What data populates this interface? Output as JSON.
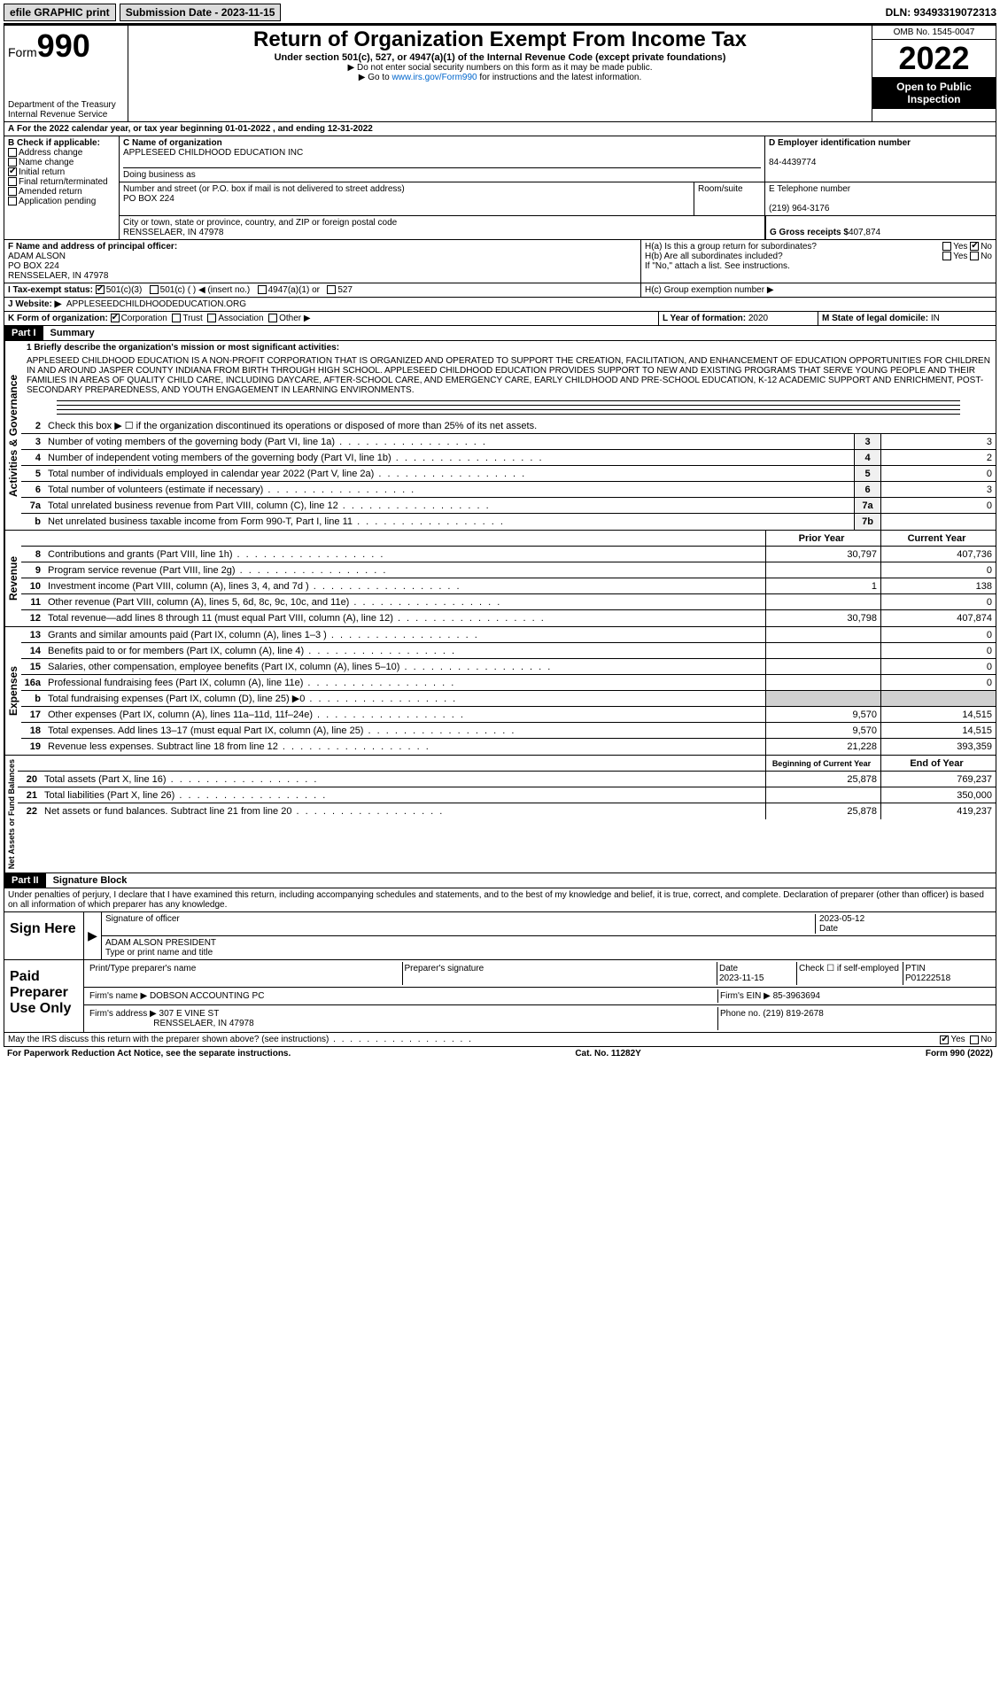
{
  "topbar": {
    "efile": "efile GRAPHIC print",
    "subdate_lbl": "Submission Date - 2023-11-15",
    "dln": "DLN: 93493319072313"
  },
  "header": {
    "form": "Form",
    "num": "990",
    "dept": "Department of the Treasury Internal Revenue Service",
    "title": "Return of Organization Exempt From Income Tax",
    "sub": "Under section 501(c), 527, or 4947(a)(1) of the Internal Revenue Code (except private foundations)",
    "note1": "▶ Do not enter social security numbers on this form as it may be made public.",
    "note2_pre": "▶ Go to ",
    "note2_link": "www.irs.gov/Form990",
    "note2_post": " for instructions and the latest information.",
    "omb": "OMB No. 1545-0047",
    "year": "2022",
    "pubinsp": "Open to Public Inspection"
  },
  "A": "For the 2022 calendar year, or tax year beginning 01-01-2022   , and ending 12-31-2022",
  "B": {
    "title": "B Check if applicable:",
    "items": [
      "Address change",
      "Name change",
      "Initial return",
      "Final return/terminated",
      "Amended return",
      "Application pending"
    ],
    "checked": [
      false,
      false,
      true,
      false,
      false,
      false
    ]
  },
  "C": {
    "lbl": "C Name of organization",
    "name": "APPLESEED CHILDHOOD EDUCATION INC",
    "dba_lbl": "Doing business as",
    "addr_lbl": "Number and street (or P.O. box if mail is not delivered to street address)",
    "addr": "PO BOX 224",
    "room_lbl": "Room/suite",
    "city_lbl": "City or town, state or province, country, and ZIP or foreign postal code",
    "city": "RENSSELAER, IN  47978"
  },
  "D": {
    "lbl": "D Employer identification number",
    "val": "84-4439774"
  },
  "E": {
    "lbl": "E Telephone number",
    "val": "(219) 964-3176"
  },
  "G": {
    "lbl": "G Gross receipts $",
    "val": "407,874"
  },
  "F": {
    "lbl": "F  Name and address of principal officer:",
    "name": "ADAM ALSON",
    "addr": "PO BOX 224",
    "city": "RENSSELAER, IN  47978"
  },
  "H": {
    "a": "H(a)  Is this a group return for subordinates?",
    "b": "H(b)  Are all subordinates included?",
    "bnote": "If \"No,\" attach a list. See instructions.",
    "c": "H(c)  Group exemption number ▶"
  },
  "I": {
    "lbl": "I   Tax-exempt status:",
    "opts": [
      "501(c)(3)",
      "501(c) (  ) ◀ (insert no.)",
      "4947(a)(1) or",
      "527"
    ]
  },
  "J": {
    "lbl": "J  Website: ▶",
    "val": "APPLESEEDCHILDHOODEDUCATION.ORG"
  },
  "K": {
    "lbl": "K Form of organization:",
    "opts": [
      "Corporation",
      "Trust",
      "Association",
      "Other ▶"
    ]
  },
  "L": {
    "lbl": "L Year of formation:",
    "val": "2020"
  },
  "M": {
    "lbl": "M State of legal domicile:",
    "val": "IN"
  },
  "part1": {
    "hdr": "Part I",
    "title": "Summary"
  },
  "mission_lbl": "1   Briefly describe the organization's mission or most significant activities:",
  "mission": "APPLESEED CHILDHOOD EDUCATION IS A NON-PROFIT CORPORATION THAT IS ORGANIZED AND OPERATED TO SUPPORT THE CREATION, FACILITATION, AND ENHANCEMENT OF EDUCATION OPPORTUNITIES FOR CHILDREN IN AND AROUND JASPER COUNTY INDIANA FROM BIRTH THROUGH HIGH SCHOOL. APPLESEED CHILDHOOD EDUCATION PROVIDES SUPPORT TO NEW AND EXISTING PROGRAMS THAT SERVE YOUNG PEOPLE AND THEIR FAMILIES IN AREAS OF QUALITY CHILD CARE, INCLUDING DAYCARE, AFTER-SCHOOL CARE, AND EMERGENCY CARE, EARLY CHILDHOOD AND PRE-SCHOOL EDUCATION, K-12 ACADEMIC SUPPORT AND ENRICHMENT, POST- SECONDARY PREPAREDNESS, AND YOUTH ENGAGEMENT IN LEARNING ENVIRONMENTS.",
  "gov": {
    "label": "Activities & Governance",
    "l2": "Check this box ▶ ☐ if the organization discontinued its operations or disposed of more than 25% of its net assets.",
    "lines": [
      {
        "n": "3",
        "t": "Number of voting members of the governing body (Part VI, line 1a)",
        "box": "3",
        "v": "3"
      },
      {
        "n": "4",
        "t": "Number of independent voting members of the governing body (Part VI, line 1b)",
        "box": "4",
        "v": "2"
      },
      {
        "n": "5",
        "t": "Total number of individuals employed in calendar year 2022 (Part V, line 2a)",
        "box": "5",
        "v": "0"
      },
      {
        "n": "6",
        "t": "Total number of volunteers (estimate if necessary)",
        "box": "6",
        "v": "3"
      },
      {
        "n": "7a",
        "t": "Total unrelated business revenue from Part VIII, column (C), line 12",
        "box": "7a",
        "v": "0"
      },
      {
        "n": "b",
        "t": "Net unrelated business taxable income from Form 990-T, Part I, line 11",
        "box": "7b",
        "v": ""
      }
    ]
  },
  "rev": {
    "label": "Revenue",
    "hdr_prior": "Prior Year",
    "hdr_curr": "Current Year",
    "lines": [
      {
        "n": "8",
        "t": "Contributions and grants (Part VIII, line 1h)",
        "p": "30,797",
        "c": "407,736"
      },
      {
        "n": "9",
        "t": "Program service revenue (Part VIII, line 2g)",
        "p": "",
        "c": "0"
      },
      {
        "n": "10",
        "t": "Investment income (Part VIII, column (A), lines 3, 4, and 7d )",
        "p": "1",
        "c": "138"
      },
      {
        "n": "11",
        "t": "Other revenue (Part VIII, column (A), lines 5, 6d, 8c, 9c, 10c, and 11e)",
        "p": "",
        "c": "0"
      },
      {
        "n": "12",
        "t": "Total revenue—add lines 8 through 11 (must equal Part VIII, column (A), line 12)",
        "p": "30,798",
        "c": "407,874"
      }
    ]
  },
  "exp": {
    "label": "Expenses",
    "lines": [
      {
        "n": "13",
        "t": "Grants and similar amounts paid (Part IX, column (A), lines 1–3 )",
        "p": "",
        "c": "0"
      },
      {
        "n": "14",
        "t": "Benefits paid to or for members (Part IX, column (A), line 4)",
        "p": "",
        "c": "0"
      },
      {
        "n": "15",
        "t": "Salaries, other compensation, employee benefits (Part IX, column (A), lines 5–10)",
        "p": "",
        "c": "0"
      },
      {
        "n": "16a",
        "t": "Professional fundraising fees (Part IX, column (A), line 11e)",
        "p": "",
        "c": "0"
      },
      {
        "n": "b",
        "t": "Total fundraising expenses (Part IX, column (D), line 25) ▶0",
        "p": "shade",
        "c": "shade"
      },
      {
        "n": "17",
        "t": "Other expenses (Part IX, column (A), lines 11a–11d, 11f–24e)",
        "p": "9,570",
        "c": "14,515"
      },
      {
        "n": "18",
        "t": "Total expenses. Add lines 13–17 (must equal Part IX, column (A), line 25)",
        "p": "9,570",
        "c": "14,515"
      },
      {
        "n": "19",
        "t": "Revenue less expenses. Subtract line 18 from line 12",
        "p": "21,228",
        "c": "393,359"
      }
    ]
  },
  "net": {
    "label": "Net Assets or Fund Balances",
    "hdr_beg": "Beginning of Current Year",
    "hdr_end": "End of Year",
    "lines": [
      {
        "n": "20",
        "t": "Total assets (Part X, line 16)",
        "p": "25,878",
        "c": "769,237"
      },
      {
        "n": "21",
        "t": "Total liabilities (Part X, line 26)",
        "p": "",
        "c": "350,000"
      },
      {
        "n": "22",
        "t": "Net assets or fund balances. Subtract line 21 from line 20",
        "p": "25,878",
        "c": "419,237"
      }
    ]
  },
  "part2": {
    "hdr": "Part II",
    "title": "Signature Block"
  },
  "perjury": "Under penalties of perjury, I declare that I have examined this return, including accompanying schedules and statements, and to the best of my knowledge and belief, it is true, correct, and complete. Declaration of preparer (other than officer) is based on all information of which preparer has any knowledge.",
  "sign": {
    "lbl": "Sign Here",
    "sig_lbl": "Signature of officer",
    "date_lbl": "Date",
    "date": "2023-05-12",
    "name": "ADAM ALSON  PRESIDENT",
    "name_lbl": "Type or print name and title"
  },
  "preparer": {
    "lbl": "Paid Preparer Use Only",
    "cols": [
      "Print/Type preparer's name",
      "Preparer's signature",
      "Date",
      "Check ☐ if self-employed",
      "PTIN"
    ],
    "date": "2023-11-15",
    "ptin": "P01222518",
    "firm_lbl": "Firm's name   ▶",
    "firm": "DOBSON ACCOUNTING PC",
    "ein_lbl": "Firm's EIN ▶",
    "ein": "85-3963694",
    "addr_lbl": "Firm's address ▶",
    "addr": "307 E VINE ST",
    "addr2": "RENSSELAER, IN  47978",
    "phone_lbl": "Phone no.",
    "phone": "(219) 819-2678"
  },
  "discuss": "May the IRS discuss this return with the preparer shown above? (see instructions)",
  "footer": {
    "left": "For Paperwork Reduction Act Notice, see the separate instructions.",
    "mid": "Cat. No. 11282Y",
    "right": "Form 990 (2022)"
  }
}
